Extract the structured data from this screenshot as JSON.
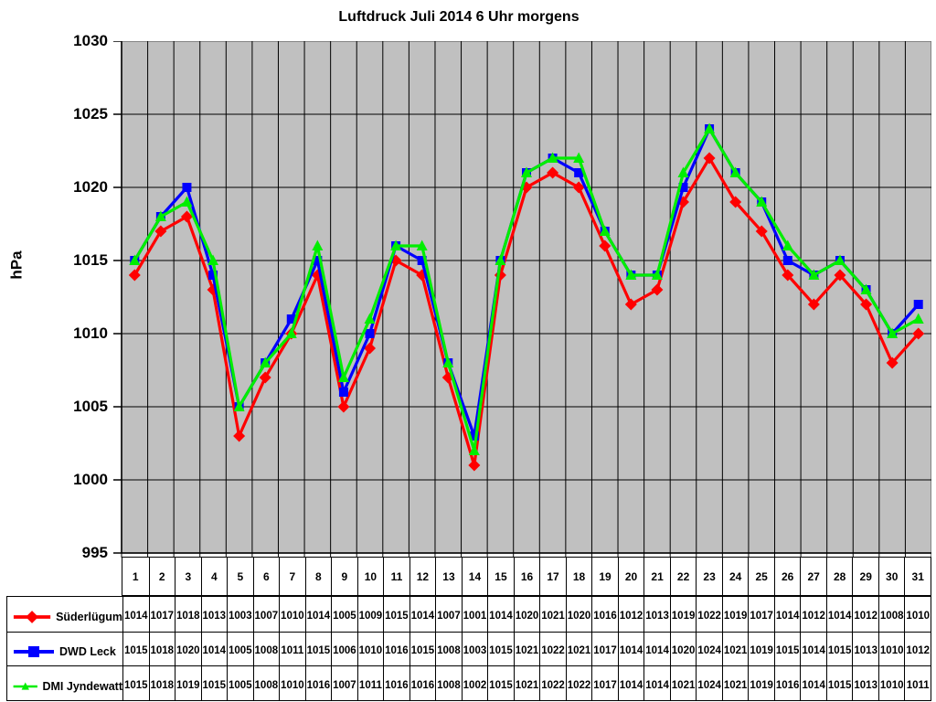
{
  "title": "Luftdruck Juli 2014 6 Uhr morgens",
  "chart_data": {
    "type": "line",
    "title": "Luftdruck Juli 2014 6 Uhr morgens",
    "xlabel": "",
    "ylabel": "hPa",
    "ylim": [
      995,
      1030
    ],
    "ytick_step": 5,
    "grid": true,
    "legend_position": "bottom-left-table",
    "plot_bg_color": "#c0c0c0",
    "gridline_color": "#000000",
    "plot_border_color": "#707070",
    "categories": [
      1,
      2,
      3,
      4,
      5,
      6,
      7,
      8,
      9,
      10,
      11,
      12,
      13,
      14,
      15,
      16,
      17,
      18,
      19,
      20,
      21,
      22,
      23,
      24,
      25,
      26,
      27,
      28,
      29,
      30,
      31
    ],
    "series": [
      {
        "name": "Süderlügum",
        "color": "#ff0000",
        "marker": "diamond",
        "values": [
          1014,
          1017,
          1018,
          1013,
          1003,
          1007,
          1010,
          1014,
          1005,
          1009,
          1015,
          1014,
          1007,
          1001,
          1014,
          1020,
          1021,
          1020,
          1016,
          1012,
          1013,
          1019,
          1022,
          1019,
          1017,
          1014,
          1012,
          1014,
          1012,
          1008,
          1010
        ]
      },
      {
        "name": "DWD Leck",
        "color": "#0000ff",
        "marker": "square",
        "values": [
          1015,
          1018,
          1020,
          1014,
          1005,
          1008,
          1011,
          1015,
          1006,
          1010,
          1016,
          1015,
          1008,
          1003,
          1015,
          1021,
          1022,
          1021,
          1017,
          1014,
          1014,
          1020,
          1024,
          1021,
          1019,
          1015,
          1014,
          1015,
          1013,
          1010,
          1012
        ]
      },
      {
        "name": "DMI Jyndewatt",
        "color": "#00ee00",
        "marker": "triangle",
        "values": [
          1015,
          1018,
          1019,
          1015,
          1005,
          1008,
          1010,
          1016,
          1007,
          1011,
          1016,
          1016,
          1008,
          1002,
          1015,
          1021,
          1022,
          1022,
          1017,
          1014,
          1014,
          1021,
          1024,
          1021,
          1019,
          1016,
          1014,
          1015,
          1013,
          1010,
          1011
        ]
      }
    ]
  }
}
